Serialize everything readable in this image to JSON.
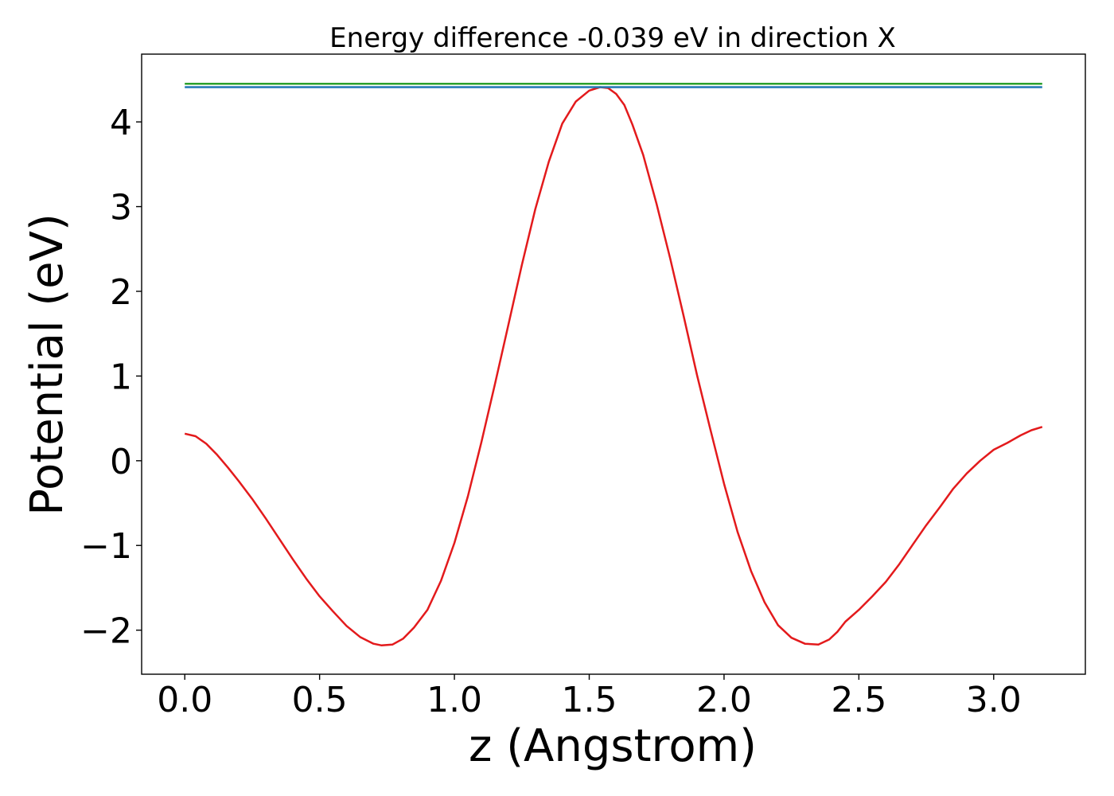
{
  "chart_data": {
    "type": "line",
    "title": "Energy difference -0.039 eV in direction X",
    "xlabel": "z (Angstrom)",
    "ylabel": "Potential (eV)",
    "xlim": [
      -0.16,
      3.34
    ],
    "ylim": [
      -2.52,
      4.8
    ],
    "xticks": [
      0.0,
      0.5,
      1.0,
      1.5,
      2.0,
      2.5,
      3.0
    ],
    "xtick_labels": [
      "0.0",
      "0.5",
      "1.0",
      "1.5",
      "2.0",
      "2.5",
      "3.0"
    ],
    "yticks": [
      -2,
      -1,
      0,
      1,
      2,
      3,
      4
    ],
    "ytick_labels": [
      "−2",
      "−1",
      "0",
      "1",
      "2",
      "3",
      "4"
    ],
    "grid": false,
    "series": [
      {
        "color": "#e31a1c",
        "x": [
          0.0,
          0.04,
          0.08,
          0.12,
          0.16,
          0.2,
          0.25,
          0.3,
          0.35,
          0.4,
          0.45,
          0.5,
          0.55,
          0.6,
          0.65,
          0.7,
          0.73,
          0.77,
          0.81,
          0.85,
          0.9,
          0.95,
          1.0,
          1.05,
          1.1,
          1.15,
          1.2,
          1.25,
          1.3,
          1.35,
          1.4,
          1.45,
          1.5,
          1.54,
          1.57,
          1.6,
          1.63,
          1.66,
          1.7,
          1.75,
          1.8,
          1.85,
          1.9,
          1.95,
          2.0,
          2.05,
          2.1,
          2.15,
          2.2,
          2.25,
          2.3,
          2.35,
          2.39,
          2.42,
          2.45,
          2.5,
          2.55,
          2.6,
          2.65,
          2.7,
          2.75,
          2.8,
          2.85,
          2.9,
          2.95,
          3.0,
          3.05,
          3.1,
          3.14,
          3.18
        ],
        "y": [
          0.32,
          0.29,
          0.2,
          0.07,
          -0.08,
          -0.24,
          -0.45,
          -0.68,
          -0.92,
          -1.16,
          -1.39,
          -1.6,
          -1.78,
          -1.95,
          -2.08,
          -2.16,
          -2.18,
          -2.17,
          -2.1,
          -1.97,
          -1.76,
          -1.42,
          -0.97,
          -0.42,
          0.22,
          0.9,
          1.6,
          2.31,
          2.97,
          3.53,
          3.98,
          4.24,
          4.37,
          4.41,
          4.4,
          4.33,
          4.2,
          3.97,
          3.61,
          3.03,
          2.39,
          1.71,
          1.01,
          0.36,
          -0.27,
          -0.84,
          -1.3,
          -1.67,
          -1.94,
          -2.09,
          -2.16,
          -2.17,
          -2.11,
          -2.02,
          -1.9,
          -1.76,
          -1.6,
          -1.43,
          -1.22,
          -0.99,
          -0.76,
          -0.55,
          -0.33,
          -0.15,
          0.0,
          0.13,
          0.21,
          0.3,
          0.36,
          0.4
        ]
      },
      {
        "color": "#1f77b4",
        "x": [
          0.0,
          3.18
        ],
        "y": [
          4.41,
          4.41
        ]
      },
      {
        "color": "#2ca02c",
        "x": [
          0.0,
          3.18
        ],
        "y": [
          4.45,
          4.45
        ]
      }
    ]
  }
}
